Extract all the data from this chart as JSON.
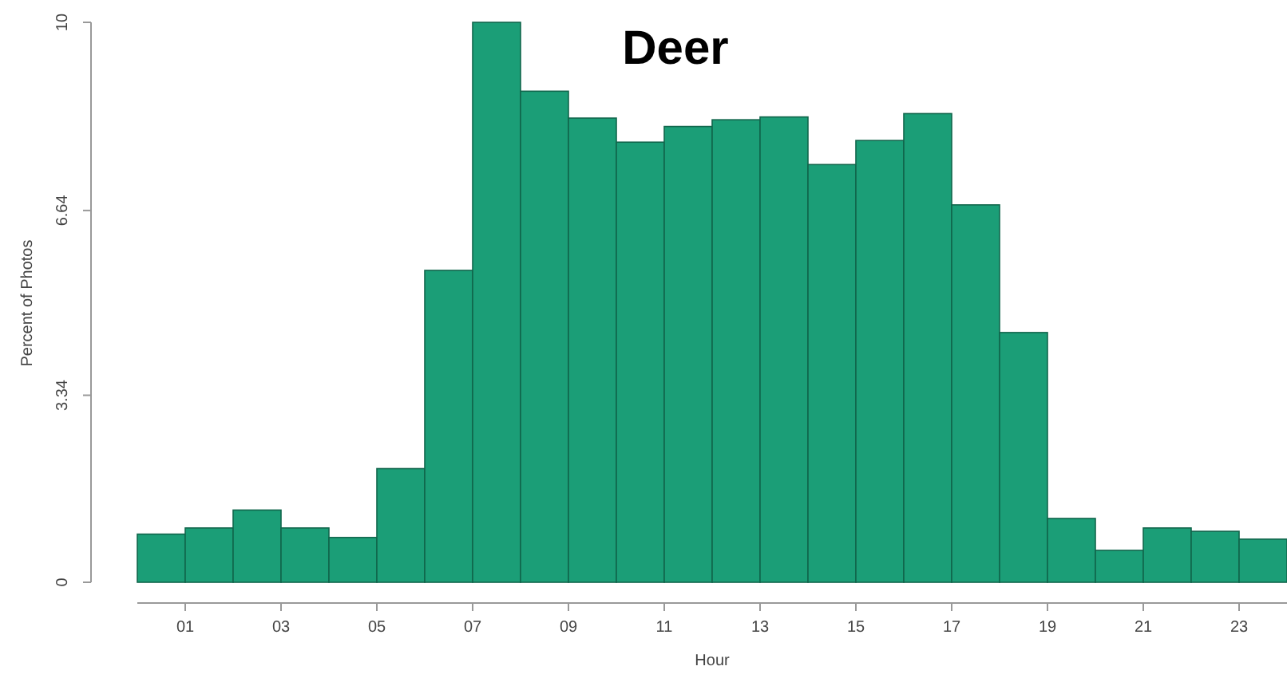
{
  "chart_data": {
    "type": "histogram",
    "title": "Deer",
    "xlabel": "Hour",
    "ylabel": "Percent of Photos",
    "bins": [
      0,
      1,
      2,
      3,
      4,
      5,
      6,
      7,
      8,
      9,
      10,
      11,
      12,
      13,
      14,
      15,
      16,
      17,
      18,
      19,
      20,
      21,
      22,
      23,
      24
    ],
    "values": [
      0.86,
      0.97,
      1.29,
      0.97,
      0.8,
      2.03,
      5.57,
      10,
      8.77,
      8.29,
      7.86,
      8.14,
      8.26,
      8.31,
      7.46,
      7.89,
      8.37,
      6.74,
      4.46,
      1.14,
      0.57,
      0.97,
      0.91,
      0.77
    ],
    "color": "#1b9e77",
    "xlim": [
      0,
      24
    ],
    "xticks": [
      {
        "value": 1,
        "label": "01"
      },
      {
        "value": 3,
        "label": "03"
      },
      {
        "value": 5,
        "label": "05"
      },
      {
        "value": 7,
        "label": "07"
      },
      {
        "value": 9,
        "label": "09"
      },
      11,
      13,
      15,
      17,
      19,
      21,
      23
    ],
    "ylim": [
      0,
      10
    ],
    "yticks": [
      0,
      3.34,
      6.64,
      10
    ]
  }
}
